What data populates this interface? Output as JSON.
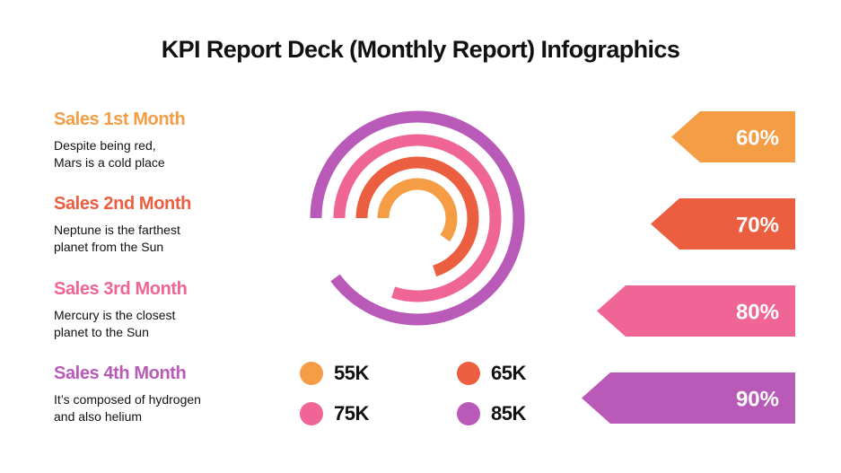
{
  "title": "KPI Report Deck (Monthly Report) Infographics",
  "items": [
    {
      "title": "Sales 1st Month",
      "desc_line1": "Despite being red,",
      "desc_line2": "Mars is a cold place",
      "color": "#F49D45",
      "percent": 60,
      "percent_label": "60%",
      "legend_label": "55K"
    },
    {
      "title": "Sales 2nd Month",
      "desc_line1": "Neptune is the farthest",
      "desc_line2": "planet from the Sun",
      "color": "#EB5E3F",
      "percent": 70,
      "percent_label": "70%",
      "legend_label": "65K"
    },
    {
      "title": "Sales 3rd Month",
      "desc_line1": "Mercury is the closest",
      "desc_line2": "planet to the Sun",
      "color": "#EF6596",
      "percent": 80,
      "percent_label": "80%",
      "legend_label": "75K"
    },
    {
      "title": "Sales 4th Month",
      "desc_line1": "It’s composed of hydrogen",
      "desc_line2": "and also helium",
      "color": "#B95AB8",
      "percent": 90,
      "percent_label": "90%",
      "legend_label": "85K"
    }
  ]
}
